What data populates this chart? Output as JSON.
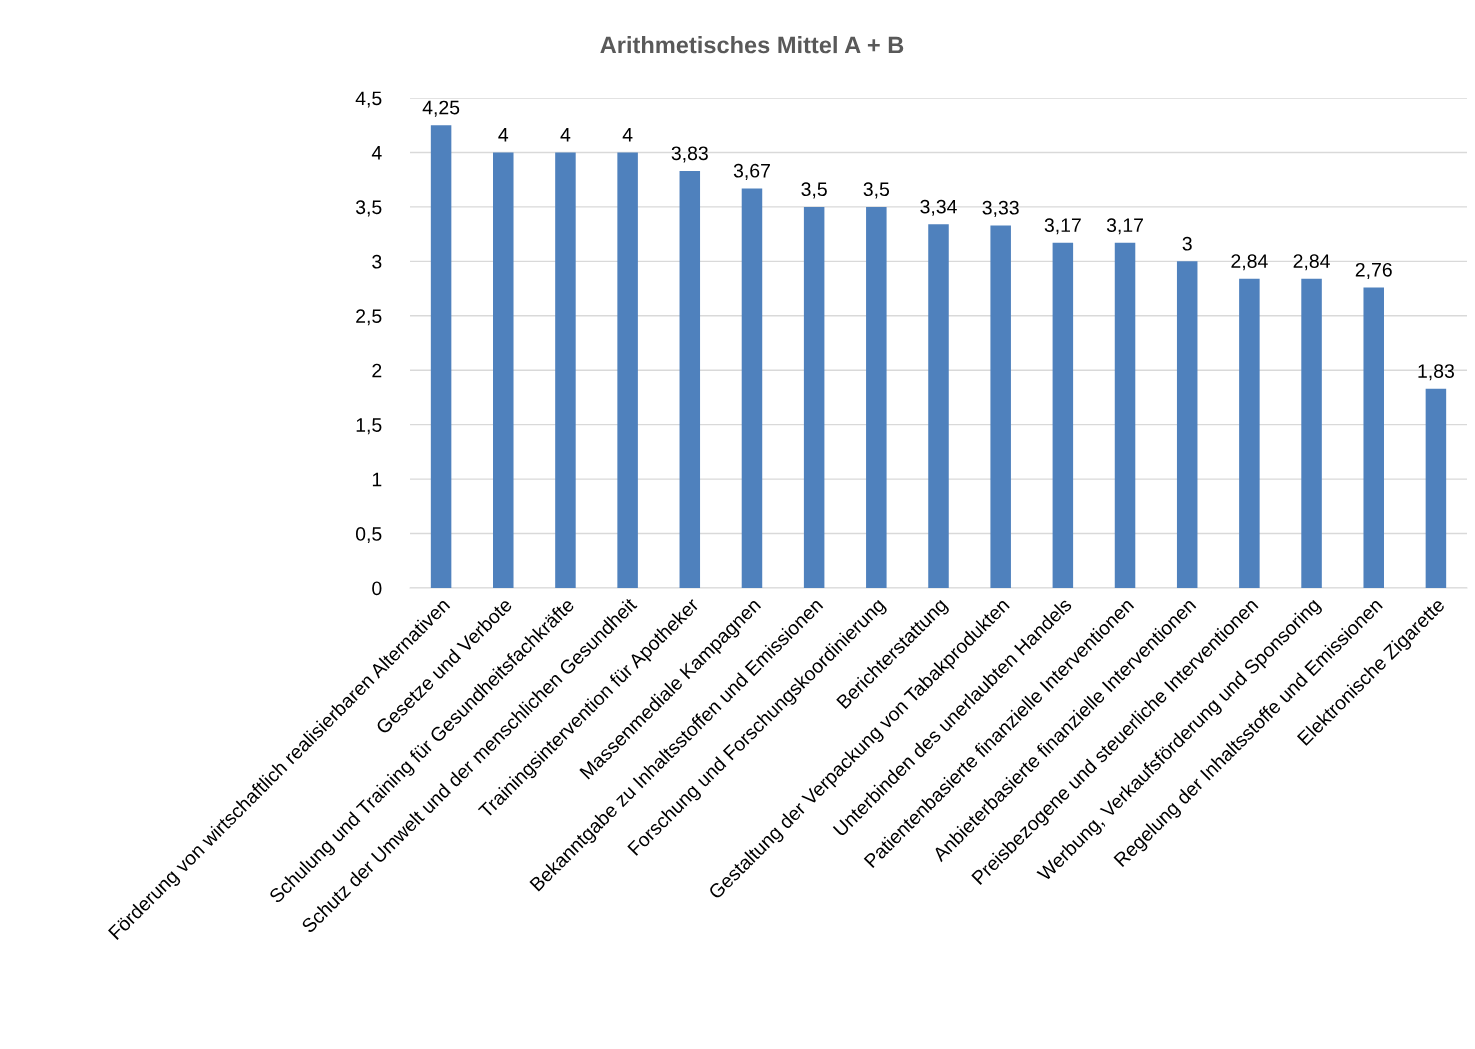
{
  "chart_data": {
    "type": "bar",
    "title": "Arithmetisches Mittel A + B",
    "categories": [
      "Förderung von wirtschaftlich realisierbaren Alternativen",
      "Gesetze und Verbote",
      "Schulung und Training für Gesundheitsfachkräfte",
      "Schutz der Umwelt und der menschlichen Gesundheit",
      "Trainingsintervention für Apotheker",
      "Massenmediale Kampagnen",
      "Bekanntgabe zu Inhaltsstoffen und Emissionen",
      "Forschung und Forschungskoordinierung",
      "Berichterstattung",
      "Gestaltung der Verpackung von Tabakprodukten",
      "Unterbinden des unerlaubten Handels",
      "Patientenbasierte finanzielle Interventionen",
      "Anbieterbasierte finanzielle Interventionen",
      "Preisbezogene und steuerliche Interventionen",
      "Werbung, Verkaufsförderung und Sponsoring",
      "Regelung der Inhaltsstoffe und Emissionen",
      "Elektronische Zigarette"
    ],
    "values": [
      4.25,
      4,
      4,
      4,
      3.83,
      3.67,
      3.5,
      3.5,
      3.34,
      3.33,
      3.17,
      3.17,
      3,
      2.84,
      2.84,
      2.76,
      1.83
    ],
    "value_labels": [
      "4,25",
      "4",
      "4",
      "4",
      "3,83",
      "3,67",
      "3,5",
      "3,5",
      "3,34",
      "3,33",
      "3,17",
      "3,17",
      "3",
      "2,84",
      "2,84",
      "2,76",
      "1,83"
    ],
    "color": "#4f81bd",
    "ylim": [
      0,
      4.5
    ],
    "yticks": [
      0,
      {
        "value": 0.5,
        "label": "0,5"
      },
      1,
      {
        "value": 1.5,
        "label": "1,5"
      },
      2,
      {
        "value": 2.5,
        "label": "2,5"
      },
      3,
      {
        "value": 3.5,
        "label": "3,5"
      },
      4,
      {
        "value": 4.5,
        "label": "4,5"
      }
    ],
    "grid": "y"
  }
}
